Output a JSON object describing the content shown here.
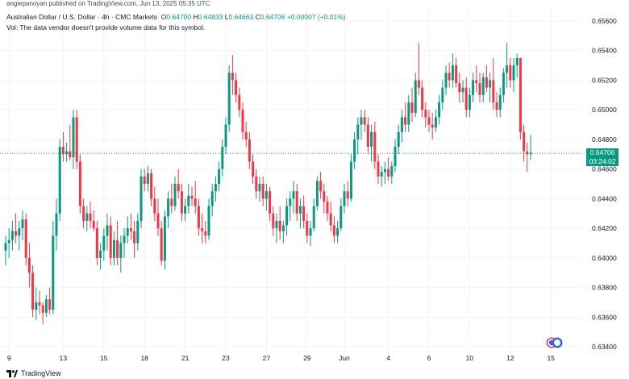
{
  "header": {
    "published": "angiepanoyan published on TradingView.com, Jun 13, 2025 05:35 UTC",
    "symbol": "Australian Dollar / U.S. Dollar · 4h · CMC Markets",
    "open_label": "O",
    "open": "0.64700",
    "high_label": "H",
    "high": "0.64833",
    "low_label": "L",
    "low": "0.64663",
    "close_label": "C",
    "close": "0.64706",
    "change": "+0.00007 (+0.01%)",
    "volume_note": "Vol: The data vendor doesn't provide volume data for this symbol."
  },
  "price_tag": {
    "price": "0.64706",
    "countdown": "03:24:02"
  },
  "brand": "TradingView",
  "colors": {
    "up": "#089981",
    "down": "#f23645",
    "grid": "#f0f3fa"
  },
  "chart_data": {
    "type": "candlestick",
    "ylim": [
      0.6332,
      0.6568
    ],
    "y_ticks": [
      "0.65600",
      "0.65400",
      "0.65200",
      "0.65000",
      "0.64800",
      "0.64600",
      "0.64400",
      "0.64200",
      "0.64000",
      "0.63800",
      "0.63600",
      "0.63400"
    ],
    "y_tick_values": [
      0.656,
      0.654,
      0.652,
      0.65,
      0.648,
      0.646,
      0.644,
      0.642,
      0.64,
      0.638,
      0.636,
      0.634
    ],
    "x_ticks": [
      "9",
      "13",
      "15",
      "18",
      "21",
      "23",
      "27",
      "29",
      "Jun",
      "4",
      "6",
      "10",
      "12",
      "15"
    ],
    "x_tick_bars": [
      1,
      17,
      29,
      41,
      53,
      65,
      77,
      89,
      100,
      113,
      125,
      137,
      149,
      161
    ],
    "current_price": 0.64706,
    "candles": [
      [
        0.6405,
        0.6415,
        0.6395,
        0.641
      ],
      [
        0.641,
        0.642,
        0.64,
        0.6412
      ],
      [
        0.6412,
        0.6425,
        0.6405,
        0.6418
      ],
      [
        0.6418,
        0.643,
        0.641,
        0.6415
      ],
      [
        0.6415,
        0.6425,
        0.6405,
        0.642
      ],
      [
        0.642,
        0.6432,
        0.6412,
        0.6426
      ],
      [
        0.6426,
        0.643,
        0.6395,
        0.64
      ],
      [
        0.64,
        0.641,
        0.638,
        0.639
      ],
      [
        0.639,
        0.6395,
        0.636,
        0.6365
      ],
      [
        0.6365,
        0.638,
        0.6358,
        0.637
      ],
      [
        0.637,
        0.6378,
        0.6362,
        0.6368
      ],
      [
        0.6368,
        0.637,
        0.6355,
        0.6363
      ],
      [
        0.6363,
        0.6375,
        0.636,
        0.6372
      ],
      [
        0.6372,
        0.638,
        0.6362,
        0.6365
      ],
      [
        0.6365,
        0.6425,
        0.6362,
        0.6415
      ],
      [
        0.6415,
        0.644,
        0.6405,
        0.643
      ],
      [
        0.643,
        0.648,
        0.6425,
        0.6475
      ],
      [
        0.6475,
        0.6485,
        0.6465,
        0.647
      ],
      [
        0.647,
        0.6478,
        0.6465,
        0.6472
      ],
      [
        0.6472,
        0.649,
        0.6466,
        0.6468
      ],
      [
        0.6468,
        0.65,
        0.646,
        0.6495
      ],
      [
        0.6495,
        0.65,
        0.646,
        0.6465
      ],
      [
        0.6465,
        0.647,
        0.643,
        0.6435
      ],
      [
        0.6435,
        0.644,
        0.642,
        0.6425
      ],
      [
        0.6425,
        0.6435,
        0.6418,
        0.643
      ],
      [
        0.643,
        0.6438,
        0.642,
        0.6425
      ],
      [
        0.6425,
        0.6432,
        0.6418,
        0.642
      ],
      [
        0.642,
        0.6425,
        0.6395,
        0.64
      ],
      [
        0.64,
        0.641,
        0.6392,
        0.6405
      ],
      [
        0.6405,
        0.642,
        0.6398,
        0.6415
      ],
      [
        0.6415,
        0.643,
        0.6405,
        0.6422
      ],
      [
        0.6422,
        0.6428,
        0.6395,
        0.64
      ],
      [
        0.64,
        0.6418,
        0.6395,
        0.6412
      ],
      [
        0.6412,
        0.6425,
        0.6395,
        0.64
      ],
      [
        0.64,
        0.6415,
        0.639,
        0.641
      ],
      [
        0.641,
        0.642,
        0.64,
        0.6415
      ],
      [
        0.6415,
        0.6428,
        0.641,
        0.642
      ],
      [
        0.642,
        0.643,
        0.6412,
        0.6418
      ],
      [
        0.6418,
        0.6425,
        0.64,
        0.641
      ],
      [
        0.641,
        0.643,
        0.6405,
        0.6425
      ],
      [
        0.6425,
        0.646,
        0.642,
        0.6455
      ],
      [
        0.6455,
        0.646,
        0.6445,
        0.645
      ],
      [
        0.645,
        0.6462,
        0.6445,
        0.6457
      ],
      [
        0.6457,
        0.646,
        0.6435,
        0.644
      ],
      [
        0.644,
        0.6448,
        0.6425,
        0.643
      ],
      [
        0.643,
        0.644,
        0.6415,
        0.642
      ],
      [
        0.642,
        0.6425,
        0.6395,
        0.6398
      ],
      [
        0.6398,
        0.6432,
        0.6392,
        0.6428
      ],
      [
        0.6428,
        0.6445,
        0.642,
        0.644
      ],
      [
        0.644,
        0.645,
        0.643,
        0.6435
      ],
      [
        0.6435,
        0.6455,
        0.6432,
        0.645
      ],
      [
        0.645,
        0.646,
        0.644,
        0.6445
      ],
      [
        0.6445,
        0.645,
        0.6425,
        0.643
      ],
      [
        0.643,
        0.644,
        0.6425,
        0.6435
      ],
      [
        0.6435,
        0.645,
        0.643,
        0.6442
      ],
      [
        0.6442,
        0.6448,
        0.6435,
        0.644
      ],
      [
        0.644,
        0.6452,
        0.643,
        0.6435
      ],
      [
        0.6435,
        0.644,
        0.6415,
        0.642
      ],
      [
        0.642,
        0.643,
        0.641,
        0.6418
      ],
      [
        0.6418,
        0.6425,
        0.641,
        0.6415
      ],
      [
        0.6415,
        0.644,
        0.6412,
        0.6435
      ],
      [
        0.6435,
        0.645,
        0.6428,
        0.6445
      ],
      [
        0.6445,
        0.6455,
        0.6438,
        0.645
      ],
      [
        0.645,
        0.6465,
        0.6445,
        0.646
      ],
      [
        0.646,
        0.648,
        0.6455,
        0.6475
      ],
      [
        0.6475,
        0.6495,
        0.647,
        0.649
      ],
      [
        0.649,
        0.653,
        0.6485,
        0.6525
      ],
      [
        0.6525,
        0.6537,
        0.651,
        0.652
      ],
      [
        0.652,
        0.6525,
        0.6505,
        0.651
      ],
      [
        0.651,
        0.6515,
        0.6495,
        0.65
      ],
      [
        0.65,
        0.6505,
        0.648,
        0.6485
      ],
      [
        0.6485,
        0.6492,
        0.6475,
        0.648
      ],
      [
        0.648,
        0.6485,
        0.646,
        0.6465
      ],
      [
        0.6465,
        0.647,
        0.645,
        0.6455
      ],
      [
        0.6455,
        0.646,
        0.644,
        0.6445
      ],
      [
        0.6445,
        0.6455,
        0.6438,
        0.645
      ],
      [
        0.645,
        0.6455,
        0.6435,
        0.644
      ],
      [
        0.644,
        0.645,
        0.6432,
        0.6445
      ],
      [
        0.6445,
        0.6448,
        0.6425,
        0.643
      ],
      [
        0.643,
        0.6435,
        0.6415,
        0.642
      ],
      [
        0.642,
        0.643,
        0.641,
        0.6425
      ],
      [
        0.6425,
        0.6435,
        0.6412,
        0.6418
      ],
      [
        0.6418,
        0.6425,
        0.641,
        0.6422
      ],
      [
        0.6422,
        0.644,
        0.6415,
        0.6435
      ],
      [
        0.6435,
        0.6445,
        0.6425,
        0.644
      ],
      [
        0.644,
        0.6452,
        0.643,
        0.6445
      ],
      [
        0.6445,
        0.645,
        0.6425,
        0.643
      ],
      [
        0.643,
        0.644,
        0.642,
        0.6435
      ],
      [
        0.6435,
        0.6442,
        0.642,
        0.6425
      ],
      [
        0.6425,
        0.643,
        0.641,
        0.6415
      ],
      [
        0.6415,
        0.6425,
        0.6408,
        0.642
      ],
      [
        0.642,
        0.644,
        0.6418,
        0.6435
      ],
      [
        0.6435,
        0.6455,
        0.6432,
        0.6452
      ],
      [
        0.6452,
        0.6458,
        0.644,
        0.6445
      ],
      [
        0.6445,
        0.645,
        0.643,
        0.6438
      ],
      [
        0.6438,
        0.6442,
        0.6425,
        0.643
      ],
      [
        0.643,
        0.6438,
        0.6418,
        0.6422
      ],
      [
        0.6422,
        0.6428,
        0.641,
        0.6415
      ],
      [
        0.6415,
        0.6425,
        0.641,
        0.642
      ],
      [
        0.642,
        0.644,
        0.6418,
        0.6435
      ],
      [
        0.6435,
        0.645,
        0.643,
        0.6445
      ],
      [
        0.6445,
        0.6452,
        0.6435,
        0.644
      ],
      [
        0.644,
        0.647,
        0.6438,
        0.6465
      ],
      [
        0.6465,
        0.6485,
        0.646,
        0.648
      ],
      [
        0.648,
        0.6495,
        0.647,
        0.649
      ],
      [
        0.649,
        0.65,
        0.648,
        0.6495
      ],
      [
        0.6495,
        0.65,
        0.6485,
        0.649
      ],
      [
        0.649,
        0.6495,
        0.647,
        0.6475
      ],
      [
        0.6475,
        0.649,
        0.6465,
        0.6485
      ],
      [
        0.6485,
        0.6492,
        0.646,
        0.6465
      ],
      [
        0.6465,
        0.647,
        0.645,
        0.6455
      ],
      [
        0.6455,
        0.6462,
        0.6448,
        0.6458
      ],
      [
        0.6458,
        0.6465,
        0.645,
        0.646
      ],
      [
        0.646,
        0.6468,
        0.6452,
        0.6455
      ],
      [
        0.6455,
        0.6465,
        0.645,
        0.6462
      ],
      [
        0.6462,
        0.648,
        0.6458,
        0.6475
      ],
      [
        0.6475,
        0.649,
        0.647,
        0.6485
      ],
      [
        0.6485,
        0.65,
        0.6478,
        0.6495
      ],
      [
        0.6495,
        0.6505,
        0.6485,
        0.649
      ],
      [
        0.649,
        0.651,
        0.6485,
        0.6505
      ],
      [
        0.6505,
        0.6515,
        0.6492,
        0.6498
      ],
      [
        0.6498,
        0.6525,
        0.6495,
        0.652
      ],
      [
        0.652,
        0.6545,
        0.651,
        0.6515
      ],
      [
        0.6515,
        0.652,
        0.6495,
        0.65
      ],
      [
        0.65,
        0.6505,
        0.6488,
        0.6495
      ],
      [
        0.6495,
        0.65,
        0.6485,
        0.649
      ],
      [
        0.649,
        0.6498,
        0.648,
        0.6488
      ],
      [
        0.6488,
        0.65,
        0.6485,
        0.6495
      ],
      [
        0.6495,
        0.651,
        0.649,
        0.6505
      ],
      [
        0.6505,
        0.652,
        0.65,
        0.6515
      ],
      [
        0.6515,
        0.653,
        0.651,
        0.6525
      ],
      [
        0.6525,
        0.6532,
        0.6515,
        0.652
      ],
      [
        0.652,
        0.6538,
        0.6515,
        0.653
      ],
      [
        0.653,
        0.6535,
        0.6515,
        0.6518
      ],
      [
        0.6518,
        0.6525,
        0.6505,
        0.6512
      ],
      [
        0.6512,
        0.652,
        0.6505,
        0.6515
      ],
      [
        0.6515,
        0.6522,
        0.6495,
        0.65
      ],
      [
        0.65,
        0.6515,
        0.6495,
        0.651
      ],
      [
        0.651,
        0.6525,
        0.6505,
        0.652
      ],
      [
        0.652,
        0.653,
        0.6512,
        0.6518
      ],
      [
        0.6518,
        0.6525,
        0.6505,
        0.651
      ],
      [
        0.651,
        0.6525,
        0.6505,
        0.6522
      ],
      [
        0.6522,
        0.653,
        0.6512,
        0.6515
      ],
      [
        0.6515,
        0.6525,
        0.6505,
        0.652
      ],
      [
        0.652,
        0.6535,
        0.65,
        0.6505
      ],
      [
        0.6505,
        0.6512,
        0.6495,
        0.65
      ],
      [
        0.65,
        0.6515,
        0.6495,
        0.651
      ],
      [
        0.651,
        0.6528,
        0.6505,
        0.6525
      ],
      [
        0.6525,
        0.6545,
        0.6515,
        0.653
      ],
      [
        0.653,
        0.6535,
        0.6515,
        0.652
      ],
      [
        0.652,
        0.6535,
        0.6512,
        0.653
      ],
      [
        0.653,
        0.6538,
        0.6522,
        0.6535
      ],
      [
        0.6535,
        0.6535,
        0.648,
        0.6485
      ],
      [
        0.6485,
        0.649,
        0.6465,
        0.6472
      ],
      [
        0.6472,
        0.6478,
        0.6458,
        0.647
      ],
      [
        0.647,
        0.6483,
        0.6466,
        0.6471
      ]
    ]
  }
}
